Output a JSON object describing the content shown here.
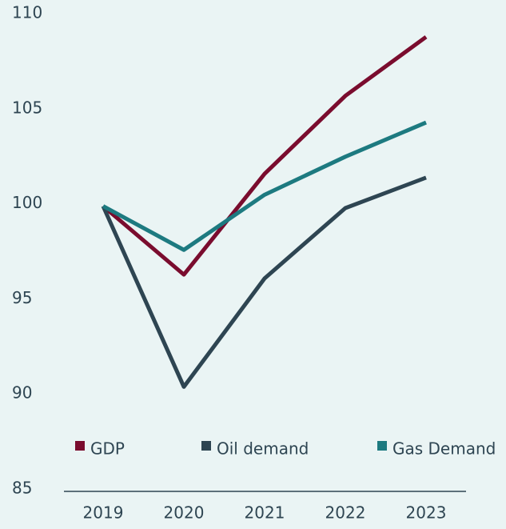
{
  "chart_data": {
    "type": "line",
    "categories": [
      "2019",
      "2020",
      "2021",
      "2022",
      "2023"
    ],
    "series": [
      {
        "name": "GDP",
        "color": "#7a0c2e",
        "values": [
          100,
          96.4,
          101.7,
          105.8,
          108.9
        ]
      },
      {
        "name": "Oil demand",
        "color": "#2e4552",
        "values": [
          100,
          90.5,
          96.2,
          99.9,
          101.5
        ]
      },
      {
        "name": "Gas Demand",
        "color": "#1d7a80",
        "values": [
          100,
          97.7,
          100.6,
          102.6,
          104.4
        ]
      }
    ],
    "ylim": [
      85,
      110
    ],
    "yticks": [
      85,
      90,
      95,
      100,
      105,
      110
    ],
    "grid": false
  }
}
